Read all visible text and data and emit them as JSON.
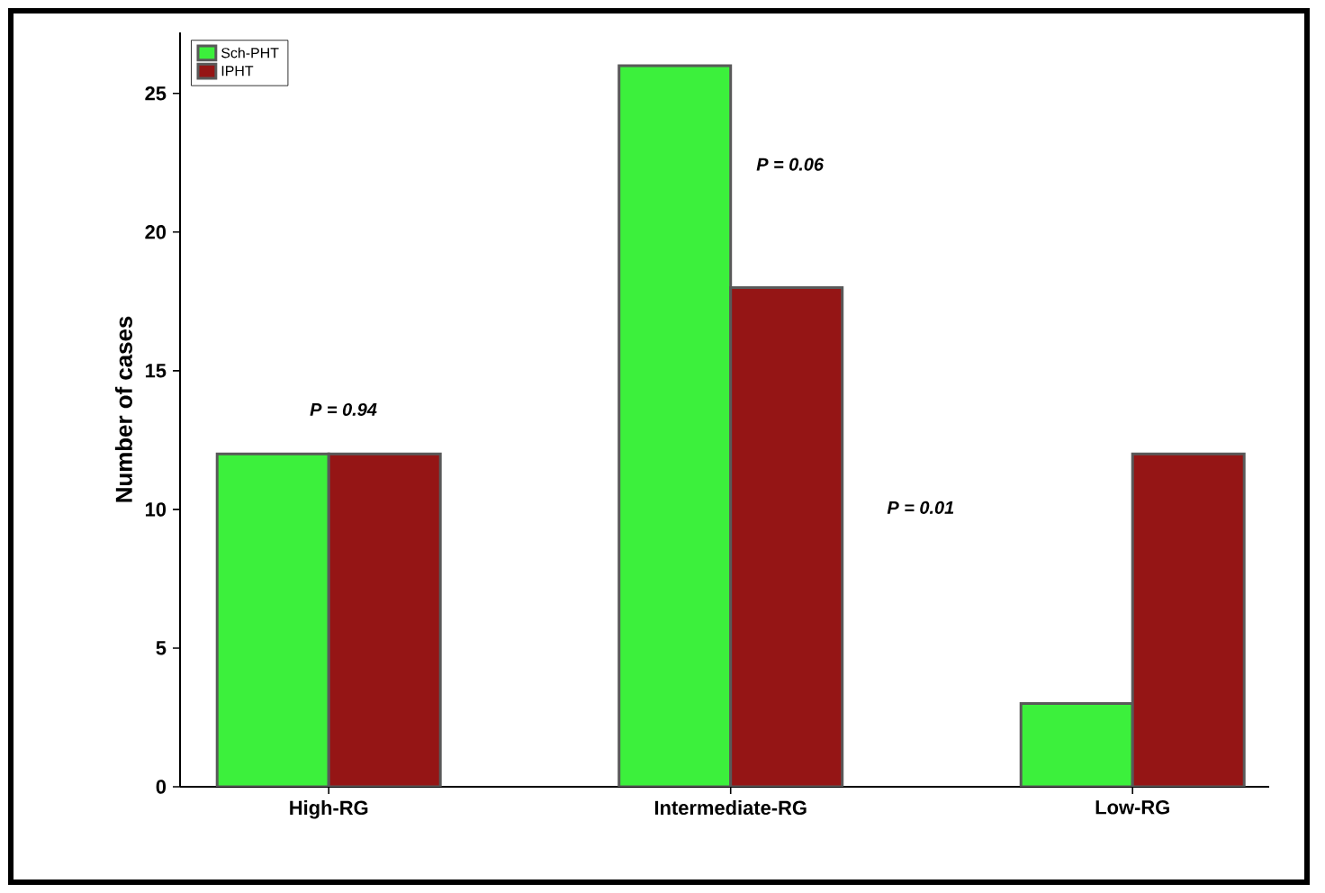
{
  "chart_data": {
    "type": "bar",
    "ylabel": "Number of cases",
    "categories": [
      "High-RG",
      "Intermediate-RG",
      "Low-RG"
    ],
    "series": [
      {
        "name": "Sch-PHT",
        "color": "#3cf03c",
        "values": [
          12,
          26,
          3
        ]
      },
      {
        "name": "IPHT",
        "color": "#951515",
        "values": [
          12,
          18,
          12
        ]
      }
    ],
    "ylim": [
      0,
      27.2
    ],
    "yticks": [
      0,
      5,
      10,
      15,
      20,
      25
    ],
    "grid": false,
    "legend": "top left",
    "annotations": [
      "P = 0.94",
      "P = 0.06",
      "P = 0.01"
    ]
  }
}
